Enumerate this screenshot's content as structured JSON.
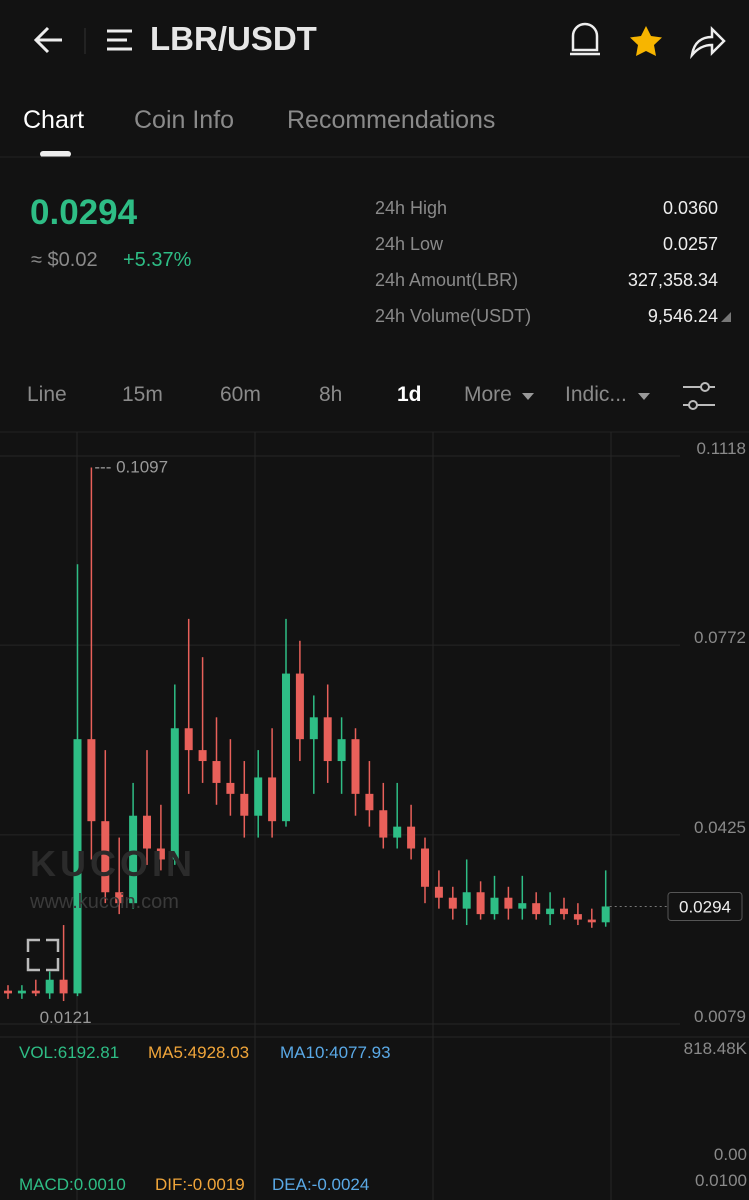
{
  "header": {
    "title": "LBR/USDT"
  },
  "tabs": [
    "Chart",
    "Coin Info",
    "Recommendations"
  ],
  "ticker": {
    "price": "0.0294",
    "usd": "≈ $0.02",
    "change": "+5.37%",
    "stats": [
      [
        "24h High",
        "0.0360"
      ],
      [
        "24h Low",
        "0.0257"
      ],
      [
        "24h Amount(LBR)",
        "327,358.34"
      ],
      [
        "24h Volume(USDT)",
        "9,546.24"
      ]
    ]
  },
  "timeframes": [
    "Line",
    "15m",
    "60m",
    "8h",
    "1d",
    "More",
    "Indic..."
  ],
  "watermark": {
    "brand": "KUCOIN",
    "url": "www.kucoin.com"
  },
  "chart_data": {
    "type": "candlestick",
    "ylim": [
      0.0079,
      0.1118
    ],
    "yticks": [
      0.1118,
      0.0772,
      0.0425,
      0.0079
    ],
    "up_color": "#2ebd85",
    "down_color": "#e8605a",
    "high_label": "--- 0.1097",
    "low_label": "0.0121",
    "last_label": "0.0294",
    "last_value": 0.0294,
    "candles": [
      [
        0.014,
        0.015,
        0.0125,
        0.0135
      ],
      [
        0.0135,
        0.015,
        0.0125,
        0.014
      ],
      [
        0.014,
        0.016,
        0.013,
        0.0135
      ],
      [
        0.0135,
        0.0175,
        0.0125,
        0.016
      ],
      [
        0.016,
        0.026,
        0.0121,
        0.0135
      ],
      [
        0.0135,
        0.092,
        0.013,
        0.06
      ],
      [
        0.06,
        0.1097,
        0.038,
        0.045
      ],
      [
        0.045,
        0.058,
        0.03,
        0.032
      ],
      [
        0.032,
        0.042,
        0.028,
        0.03
      ],
      [
        0.03,
        0.052,
        0.029,
        0.046
      ],
      [
        0.046,
        0.058,
        0.037,
        0.04
      ],
      [
        0.04,
        0.048,
        0.036,
        0.038
      ],
      [
        0.038,
        0.07,
        0.037,
        0.062
      ],
      [
        0.062,
        0.082,
        0.05,
        0.058
      ],
      [
        0.058,
        0.075,
        0.052,
        0.056
      ],
      [
        0.056,
        0.064,
        0.048,
        0.052
      ],
      [
        0.052,
        0.06,
        0.046,
        0.05
      ],
      [
        0.05,
        0.056,
        0.042,
        0.046
      ],
      [
        0.046,
        0.058,
        0.042,
        0.053
      ],
      [
        0.053,
        0.062,
        0.042,
        0.045
      ],
      [
        0.045,
        0.082,
        0.044,
        0.072
      ],
      [
        0.072,
        0.078,
        0.056,
        0.06
      ],
      [
        0.06,
        0.068,
        0.05,
        0.064
      ],
      [
        0.064,
        0.07,
        0.052,
        0.056
      ],
      [
        0.056,
        0.064,
        0.05,
        0.06
      ],
      [
        0.06,
        0.062,
        0.046,
        0.05
      ],
      [
        0.05,
        0.056,
        0.044,
        0.047
      ],
      [
        0.047,
        0.052,
        0.04,
        0.042
      ],
      [
        0.042,
        0.052,
        0.04,
        0.044
      ],
      [
        0.044,
        0.048,
        0.038,
        0.04
      ],
      [
        0.04,
        0.042,
        0.03,
        0.033
      ],
      [
        0.033,
        0.036,
        0.029,
        0.031
      ],
      [
        0.031,
        0.033,
        0.027,
        0.029
      ],
      [
        0.029,
        0.038,
        0.026,
        0.032
      ],
      [
        0.032,
        0.034,
        0.027,
        0.028
      ],
      [
        0.028,
        0.035,
        0.027,
        0.031
      ],
      [
        0.031,
        0.033,
        0.027,
        0.029
      ],
      [
        0.029,
        0.035,
        0.027,
        0.03
      ],
      [
        0.03,
        0.032,
        0.027,
        0.028
      ],
      [
        0.028,
        0.032,
        0.026,
        0.029
      ],
      [
        0.029,
        0.031,
        0.027,
        0.028
      ],
      [
        0.028,
        0.03,
        0.026,
        0.027
      ],
      [
        0.027,
        0.029,
        0.0255,
        0.0265
      ],
      [
        0.0265,
        0.036,
        0.0257,
        0.0294
      ]
    ]
  },
  "indicators": {
    "vol": "VOL:6192.81",
    "ma5": "MA5:4928.03",
    "ma10": "MA10:4077.93",
    "vol_max": "818.48K",
    "vol_min": "0.00",
    "macd": "MACD:0.0010",
    "dif": "DIF:-0.0019",
    "dea": "DEA:-0.0024",
    "macd_top": "0.0100"
  }
}
